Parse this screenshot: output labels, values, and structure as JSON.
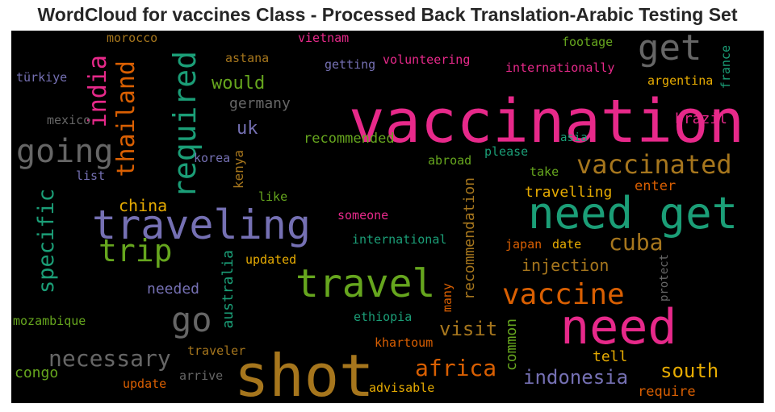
{
  "title": "WordCloud for vaccines Class - Processed Back Translation-Arabic Testing Set",
  "words": [
    {
      "text": "vaccination",
      "color": "#e7298a"
    },
    {
      "text": "shot",
      "color": "#a6761d"
    },
    {
      "text": "need",
      "color": "#e7298a"
    },
    {
      "text": "need get",
      "color": "#1b9e77"
    },
    {
      "text": "traveling",
      "color": "#7570b3"
    },
    {
      "text": "travel",
      "color": "#66a61e"
    },
    {
      "text": "required",
      "color": "#1b9e77"
    },
    {
      "text": "get",
      "color": "#666666"
    },
    {
      "text": "going",
      "color": "#666666"
    },
    {
      "text": "go",
      "color": "#666666"
    },
    {
      "text": "vaccine",
      "color": "#d95f02"
    },
    {
      "text": "vaccinated",
      "color": "#a6761d"
    },
    {
      "text": "trip",
      "color": "#66a61e"
    },
    {
      "text": "thailand",
      "color": "#d95f02"
    },
    {
      "text": "necessary",
      "color": "#666666"
    },
    {
      "text": "specific",
      "color": "#1b9e77"
    },
    {
      "text": "india",
      "color": "#e7298a"
    },
    {
      "text": "africa",
      "color": "#d95f02"
    },
    {
      "text": "cuba",
      "color": "#a6761d"
    },
    {
      "text": "indonesia",
      "color": "#7570b3"
    },
    {
      "text": "south",
      "color": "#e6ab02"
    },
    {
      "text": "visit",
      "color": "#a6761d"
    },
    {
      "text": "would",
      "color": "#66a61e"
    },
    {
      "text": "china",
      "color": "#e6ab02"
    },
    {
      "text": "injection",
      "color": "#a6761d"
    },
    {
      "text": "uk",
      "color": "#7570b3"
    },
    {
      "text": "recommendation",
      "color": "#a6761d"
    },
    {
      "text": "germany",
      "color": "#666666"
    },
    {
      "text": "travelling",
      "color": "#e6ab02"
    },
    {
      "text": "recommended",
      "color": "#66a61e"
    },
    {
      "text": "brazil",
      "color": "#e7298a"
    },
    {
      "text": "australia",
      "color": "#1b9e77"
    },
    {
      "text": "common",
      "color": "#66a61e"
    },
    {
      "text": "needed",
      "color": "#7570b3"
    },
    {
      "text": "congo",
      "color": "#66a61e"
    },
    {
      "text": "tell",
      "color": "#e6ab02"
    },
    {
      "text": "require",
      "color": "#d95f02"
    },
    {
      "text": "enter",
      "color": "#d95f02"
    },
    {
      "text": "argentina",
      "color": "#e6ab02"
    },
    {
      "text": "kenya",
      "color": "#a6761d"
    },
    {
      "text": "morocco",
      "color": "#a6761d"
    },
    {
      "text": "vietnam",
      "color": "#e7298a"
    },
    {
      "text": "footage",
      "color": "#66a61e"
    },
    {
      "text": "france",
      "color": "#1b9e77"
    },
    {
      "text": "astana",
      "color": "#a6761d"
    },
    {
      "text": "getting",
      "color": "#7570b3"
    },
    {
      "text": "volunteering",
      "color": "#e7298a"
    },
    {
      "text": "internationally",
      "color": "#e7298a"
    },
    {
      "text": "türkiye",
      "color": "#7570b3"
    },
    {
      "text": "mexico",
      "color": "#666666"
    },
    {
      "text": "korea",
      "color": "#7570b3"
    },
    {
      "text": "list",
      "color": "#7570b3"
    },
    {
      "text": "abroad",
      "color": "#66a61e"
    },
    {
      "text": "please",
      "color": "#1b9e77"
    },
    {
      "text": "asia",
      "color": "#1b9e77"
    },
    {
      "text": "take",
      "color": "#66a61e"
    },
    {
      "text": "like",
      "color": "#66a61e"
    },
    {
      "text": "someone",
      "color": "#e7298a"
    },
    {
      "text": "international",
      "color": "#1b9e77"
    },
    {
      "text": "japan",
      "color": "#d95f02"
    },
    {
      "text": "date",
      "color": "#e6ab02"
    },
    {
      "text": "updated",
      "color": "#e6ab02"
    },
    {
      "text": "protect",
      "color": "#666666"
    },
    {
      "text": "many",
      "color": "#d95f02"
    },
    {
      "text": "mozambique",
      "color": "#66a61e"
    },
    {
      "text": "ethiopia",
      "color": "#1b9e77"
    },
    {
      "text": "khartoum",
      "color": "#d95f02"
    },
    {
      "text": "traveler",
      "color": "#a6761d"
    },
    {
      "text": "arrive",
      "color": "#666666"
    },
    {
      "text": "update",
      "color": "#d95f02"
    },
    {
      "text": "advisable",
      "color": "#e6ab02"
    }
  ]
}
